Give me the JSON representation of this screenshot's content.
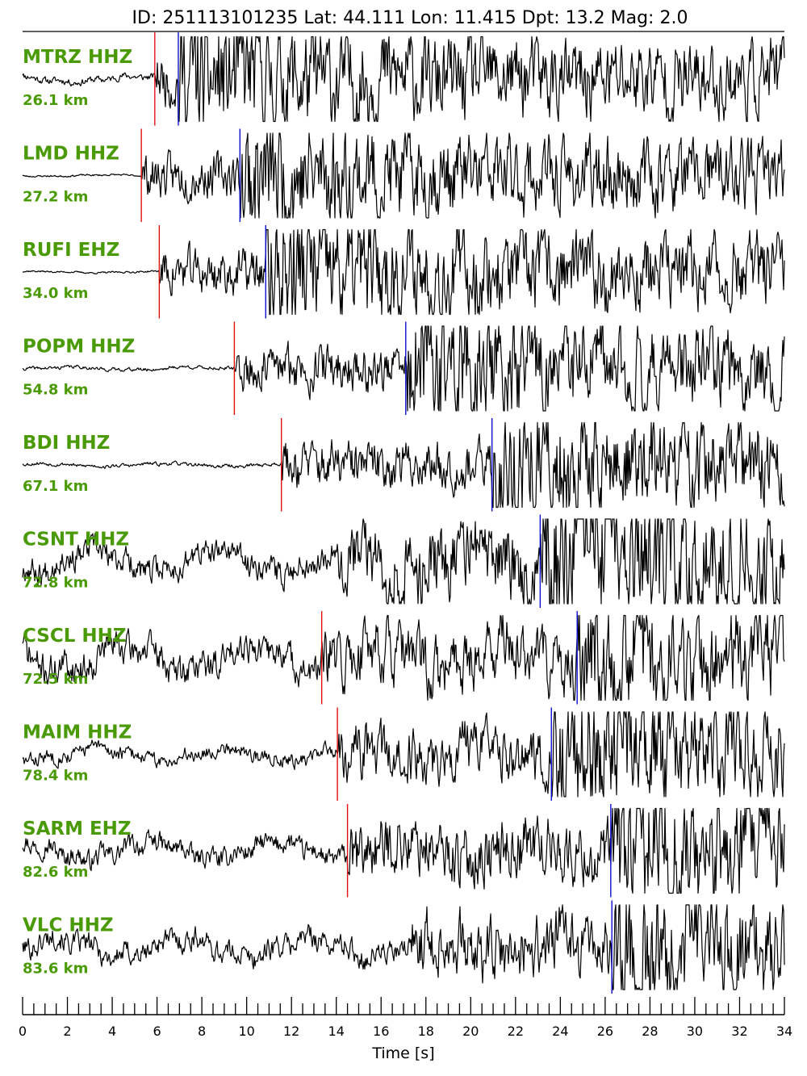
{
  "chart_data": {
    "type": "line",
    "title": "ID: 251113101235 Lat:  44.111 Lon:  11.415 Dpt:    13.2 Mag:   2.0",
    "xlabel": "Time [s]",
    "ylabel": "",
    "xlim": [
      0,
      34
    ],
    "x_ticks": [
      0,
      2,
      4,
      6,
      8,
      10,
      12,
      14,
      16,
      18,
      20,
      22,
      24,
      26,
      28,
      30,
      32,
      34
    ],
    "x_minor_tick_step": 0.5,
    "p_pick_color": "#e01010",
    "s_pick_color": "#1010d0",
    "label_color": "#4a9a06",
    "series": [
      {
        "name": "MTRZ HHZ",
        "distance": "26.1 km",
        "p_pick": 5.9,
        "s_pick": 6.95,
        "energy": 1.0,
        "noise": 0.12,
        "seed": 11
      },
      {
        "name": "LMD HHZ",
        "distance": "27.2 km",
        "p_pick": 5.3,
        "s_pick": 9.7,
        "energy": 0.95,
        "noise": 0.03,
        "seed": 23
      },
      {
        "name": "RUFI EHZ",
        "distance": "34.0 km",
        "p_pick": 6.1,
        "s_pick": 10.85,
        "energy": 1.0,
        "noise": 0.03,
        "seed": 37
      },
      {
        "name": "POPM HHZ",
        "distance": "54.8 km",
        "p_pick": 9.45,
        "s_pick": 17.1,
        "energy": 0.95,
        "noise": 0.06,
        "seed": 41
      },
      {
        "name": "BDI HHZ",
        "distance": "67.1 km",
        "p_pick": 11.55,
        "s_pick": 20.95,
        "energy": 1.0,
        "noise": 0.06,
        "seed": 53
      },
      {
        "name": "CSNT HHZ",
        "distance": "72.8 km",
        "p_pick": null,
        "s_pick": 23.1,
        "energy": 1.0,
        "noise": 0.45,
        "seed": 67
      },
      {
        "name": "CSCL HHZ",
        "distance": "72.5 km",
        "p_pick": 13.35,
        "s_pick": 24.75,
        "energy": 0.7,
        "noise": 0.55,
        "seed": 71
      },
      {
        "name": "MAIM HHZ",
        "distance": "78.4 km",
        "p_pick": 14.05,
        "s_pick": 23.6,
        "energy": 0.9,
        "noise": 0.25,
        "seed": 83
      },
      {
        "name": "SARM EHZ",
        "distance": "82.6 km",
        "p_pick": 14.5,
        "s_pick": 26.25,
        "energy": 0.9,
        "noise": 0.35,
        "seed": 97
      },
      {
        "name": "VLC HHZ",
        "distance": "83.6 km",
        "p_pick": null,
        "s_pick": 26.3,
        "energy": 0.85,
        "noise": 0.4,
        "seed": 101
      }
    ]
  }
}
